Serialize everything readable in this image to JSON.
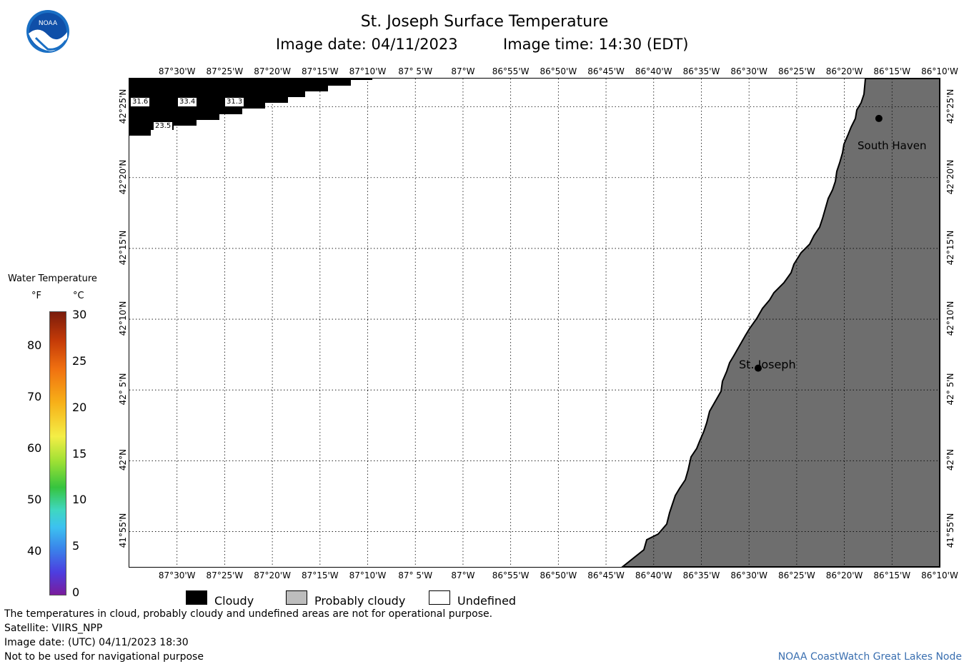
{
  "header": {
    "title": "St. Joseph Surface Temperature",
    "image_date_label": "Image date: 04/11/2023",
    "image_time_label": "Image time: 14:30 (EDT)",
    "logo_text": "NOAA"
  },
  "axes": {
    "longitude_ticks": [
      "87°30'W",
      "87°25'W",
      "87°20'W",
      "87°15'W",
      "87°10'W",
      "87° 5'W",
      "87°W",
      "86°55'W",
      "86°50'W",
      "86°45'W",
      "86°40'W",
      "86°35'W",
      "86°30'W",
      "86°25'W",
      "86°20'W",
      "86°15'W",
      "86°10'W"
    ],
    "latitude_ticks": [
      "42°25'N",
      "42°20'N",
      "42°15'N",
      "42°10'N",
      "42° 5'N",
      "42°N",
      "41°55'N"
    ]
  },
  "color_scale": {
    "title": "Water Temperature",
    "unit_f": "°F",
    "unit_c": "°C",
    "f_ticks": [
      "80",
      "70",
      "60",
      "50",
      "40"
    ],
    "c_ticks": [
      "30",
      "25",
      "20",
      "15",
      "10",
      "5",
      "0"
    ]
  },
  "map": {
    "cities": [
      {
        "name": "South Haven",
        "lat": 42.403,
        "lon": -86.273
      },
      {
        "name": "St. Joseph",
        "lat": 42.109,
        "lon": -86.484
      }
    ],
    "temperature_labels": [
      "31.6",
      "33.4",
      "31.3",
      "23.5"
    ],
    "land_color": "#6e6e6e",
    "cloud_color": "#000000"
  },
  "legend": {
    "cloudy": "Cloudy",
    "probably_cloudy": "Probably cloudy",
    "undefined": "Undefined"
  },
  "footer": {
    "note": "The temperatures in cloud, probably cloudy and undefined areas are not for operational purpose.",
    "satellite": "Satellite: VIIRS_NPP",
    "utc_date": "Image date: (UTC) 04/11/2023  18:30",
    "nav_warning": "Not to be used for navigational purpose",
    "credit": "NOAA CoastWatch Great Lakes Node"
  }
}
